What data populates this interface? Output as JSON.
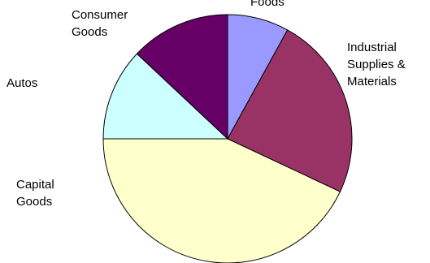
{
  "chart_data": {
    "type": "pie",
    "categories": [
      "Foods",
      "Industrial Supplies & Materials",
      "Capital Goods",
      "Autos",
      "Consumer Goods"
    ],
    "values": [
      8,
      24,
      43,
      12,
      13
    ],
    "colors": [
      "#9999ff",
      "#993366",
      "#ffffcc",
      "#ccffff",
      "#660066"
    ]
  }
}
